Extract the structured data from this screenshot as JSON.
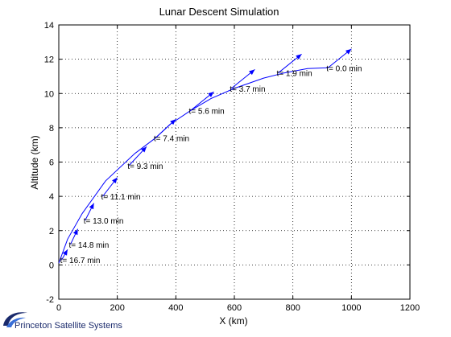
{
  "chart_data": {
    "type": "line",
    "title": "Lunar Descent Simulation",
    "xlabel": "X (km)",
    "ylabel": "Altitude (km)",
    "xlim": [
      0,
      1200
    ],
    "ylim": [
      -2,
      14
    ],
    "xticks": [
      0,
      200,
      400,
      600,
      800,
      1000,
      1200
    ],
    "yticks": [
      -2,
      0,
      2,
      4,
      6,
      8,
      10,
      12,
      14
    ],
    "grid": true,
    "line_color": "#0000ff",
    "series": [
      {
        "x": [
          920,
          850,
          770,
          700,
          600,
          520,
          450,
          380,
          330,
          260,
          160,
          80,
          30,
          0
        ],
        "y": [
          11.5,
          11.45,
          11.2,
          10.9,
          10.3,
          9.7,
          9.0,
          8.2,
          7.4,
          6.5,
          4.9,
          3.0,
          1.5,
          0.1
        ]
      }
    ],
    "markers": [
      {
        "x": 920,
        "y": 11.5,
        "label": "t=   0.0 min",
        "vx": 80,
        "vy": 1.1
      },
      {
        "x": 750,
        "y": 11.2,
        "label": "t=   1.9 min",
        "vx": 80,
        "vy": 1.1
      },
      {
        "x": 590,
        "y": 10.3,
        "label": "t=   3.7 min",
        "vx": 80,
        "vy": 1.1
      },
      {
        "x": 450,
        "y": 9.0,
        "label": "t=   5.6 min",
        "vx": 80,
        "vy": 1.1
      },
      {
        "x": 330,
        "y": 7.4,
        "label": "t=   7.4 min",
        "vx": 70,
        "vy": 1.1
      },
      {
        "x": 240,
        "y": 5.8,
        "label": "t=   9.3 min",
        "vx": 60,
        "vy": 1.1
      },
      {
        "x": 150,
        "y": 4.0,
        "label": "t=  11.1 min",
        "vx": 50,
        "vy": 1.1
      },
      {
        "x": 90,
        "y": 2.6,
        "label": "t=  13.0 min",
        "vx": 30,
        "vy": 1.0
      },
      {
        "x": 40,
        "y": 1.2,
        "label": "t=  14.8 min",
        "vx": 25,
        "vy": 0.9
      },
      {
        "x": 10,
        "y": 0.3,
        "label": "t=  16.7 min",
        "vx": 20,
        "vy": 0.6
      }
    ]
  },
  "logo": {
    "text": "Princeton Satellite Systems",
    "colors": [
      "#1a2a6c",
      "#3a6fd8"
    ]
  }
}
